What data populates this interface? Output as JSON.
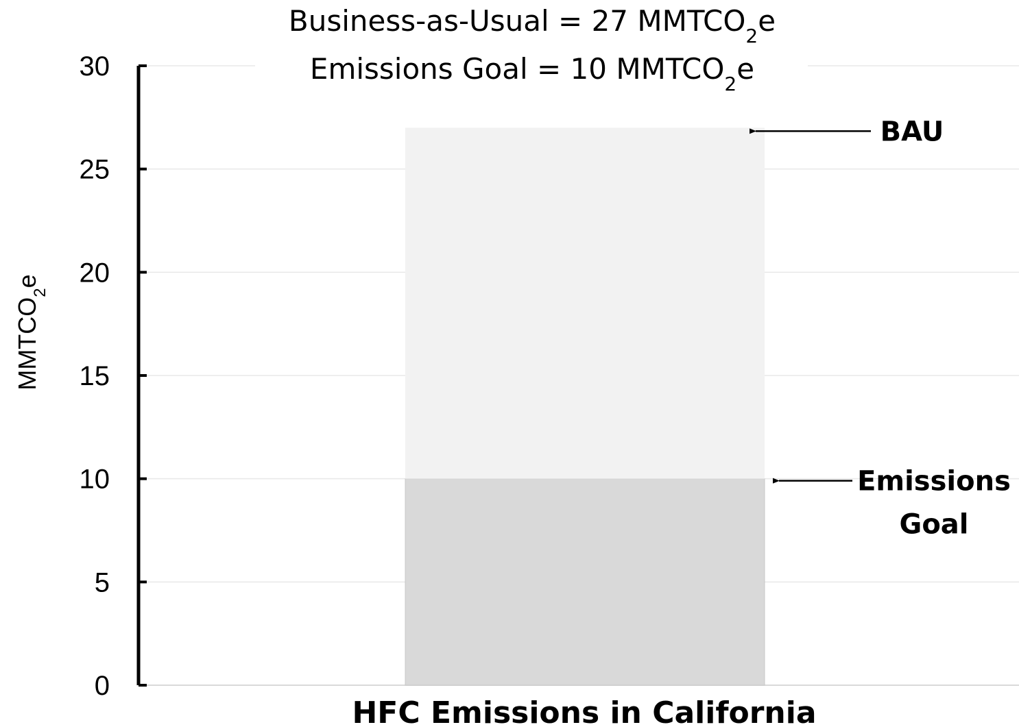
{
  "chart_data": {
    "type": "bar",
    "title_lines": [
      {
        "text": "Business-as-Usual = 27 MMTCO",
        "sub": "2",
        "suffix": "e"
      },
      {
        "text": "Emissions Goal = 10 MMTCO",
        "sub": "2",
        "suffix": "e"
      }
    ],
    "xlabel": "HFC Emissions in California",
    "ylabel": {
      "text": "MMTCO",
      "sub": "2",
      "suffix": "e"
    },
    "ylim": [
      0,
      30
    ],
    "yticks": [
      0,
      5,
      10,
      15,
      20,
      25,
      30
    ],
    "grid": true,
    "segments": [
      {
        "name": "Emissions Goal",
        "from": 0,
        "to": 10,
        "color": "#d9d9d9"
      },
      {
        "name": "BAU",
        "from": 10,
        "to": 27,
        "color": "#f2f2f2"
      }
    ],
    "annotations": [
      {
        "lines": [
          "BAU"
        ],
        "value": 27
      },
      {
        "lines": [
          "Emissions",
          "Goal"
        ],
        "value": 10
      }
    ]
  }
}
